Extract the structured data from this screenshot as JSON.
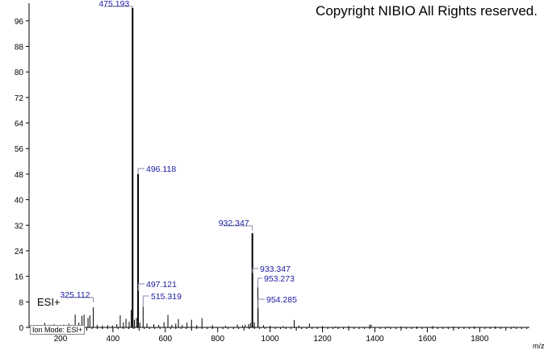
{
  "copyright": "Copyright NIBIO All Rights reserved.",
  "mode_label": "ESI+",
  "ion_mode_text": "Ion Mode: ESI+",
  "chart_data": {
    "type": "bar",
    "title": "",
    "xlabel": "m/z",
    "ylabel": "",
    "xlim": [
      80,
      1990
    ],
    "ylim": [
      0,
      100
    ],
    "x_ticks": [
      200,
      400,
      600,
      800,
      1000,
      1200,
      1400,
      1600,
      1800
    ],
    "y_ticks": [
      0,
      8,
      16,
      24,
      32,
      40,
      48,
      56,
      64,
      72,
      80,
      88,
      96
    ],
    "grid": false,
    "colors": {
      "peaks": "#000000",
      "labels": "#1a1aa0",
      "axis": "#000000"
    },
    "peaks": [
      {
        "mz": 140,
        "intensity": 1.4
      },
      {
        "mz": 158,
        "intensity": 0.8
      },
      {
        "mz": 175,
        "intensity": 1.0
      },
      {
        "mz": 190,
        "intensity": 0.6
      },
      {
        "mz": 212,
        "intensity": 0.9
      },
      {
        "mz": 232,
        "intensity": 1.2
      },
      {
        "mz": 256,
        "intensity": 4.0
      },
      {
        "mz": 270,
        "intensity": 1.5
      },
      {
        "mz": 282,
        "intensity": 3.6
      },
      {
        "mz": 290,
        "intensity": 4.0
      },
      {
        "mz": 305,
        "intensity": 3.0
      },
      {
        "mz": 312,
        "intensity": 3.8
      },
      {
        "mz": 325.112,
        "intensity": 6.3,
        "label": "325.112"
      },
      {
        "mz": 340,
        "intensity": 0.8
      },
      {
        "mz": 360,
        "intensity": 0.6
      },
      {
        "mz": 380,
        "intensity": 0.7
      },
      {
        "mz": 398,
        "intensity": 0.6
      },
      {
        "mz": 415,
        "intensity": 1.0
      },
      {
        "mz": 428,
        "intensity": 3.8
      },
      {
        "mz": 440,
        "intensity": 1.6
      },
      {
        "mz": 450,
        "intensity": 2.7
      },
      {
        "mz": 462,
        "intensity": 1.8
      },
      {
        "mz": 470,
        "intensity": 5.5
      },
      {
        "mz": 475.193,
        "intensity": 100,
        "label": "475.193"
      },
      {
        "mz": 482,
        "intensity": 2.4
      },
      {
        "mz": 490,
        "intensity": 3.0
      },
      {
        "mz": 496.118,
        "intensity": 48,
        "label": "496.118"
      },
      {
        "mz": 497.121,
        "intensity": 11.5,
        "label": "497.121"
      },
      {
        "mz": 503,
        "intensity": 1.5
      },
      {
        "mz": 515.319,
        "intensity": 6.5,
        "label": "515.319"
      },
      {
        "mz": 530,
        "intensity": 1.2
      },
      {
        "mz": 556,
        "intensity": 1.0
      },
      {
        "mz": 575,
        "intensity": 0.8
      },
      {
        "mz": 595,
        "intensity": 1.6
      },
      {
        "mz": 610,
        "intensity": 3.9
      },
      {
        "mz": 625,
        "intensity": 0.8
      },
      {
        "mz": 640,
        "intensity": 1.2
      },
      {
        "mz": 650,
        "intensity": 2.6
      },
      {
        "mz": 665,
        "intensity": 0.8
      },
      {
        "mz": 683,
        "intensity": 1.5
      },
      {
        "mz": 700,
        "intensity": 2.4
      },
      {
        "mz": 720,
        "intensity": 0.7
      },
      {
        "mz": 740,
        "intensity": 2.9
      },
      {
        "mz": 780,
        "intensity": 0.7
      },
      {
        "mz": 830,
        "intensity": 0.5
      },
      {
        "mz": 875,
        "intensity": 0.9
      },
      {
        "mz": 895,
        "intensity": 0.6
      },
      {
        "mz": 905,
        "intensity": 0.8
      },
      {
        "mz": 918,
        "intensity": 1.0
      },
      {
        "mz": 925,
        "intensity": 1.4
      },
      {
        "mz": 932.347,
        "intensity": 29.5,
        "label": "932.347"
      },
      {
        "mz": 933.347,
        "intensity": 17,
        "label": "933.347"
      },
      {
        "mz": 940,
        "intensity": 1.6
      },
      {
        "mz": 953.273,
        "intensity": 12.5,
        "label": "953.273"
      },
      {
        "mz": 954.285,
        "intensity": 6.0,
        "label": "954.285"
      },
      {
        "mz": 975,
        "intensity": 0.7
      },
      {
        "mz": 1000,
        "intensity": 0.5
      },
      {
        "mz": 1050,
        "intensity": 0.4
      },
      {
        "mz": 1092,
        "intensity": 2.3
      },
      {
        "mz": 1110,
        "intensity": 0.6
      },
      {
        "mz": 1150,
        "intensity": 1.2
      },
      {
        "mz": 1200,
        "intensity": 0.4
      },
      {
        "mz": 1250,
        "intensity": 0.3
      },
      {
        "mz": 1300,
        "intensity": 0.4
      },
      {
        "mz": 1380,
        "intensity": 0.9
      },
      {
        "mz": 1386,
        "intensity": 0.8
      },
      {
        "mz": 1450,
        "intensity": 0.3
      },
      {
        "mz": 1500,
        "intensity": 0.3
      },
      {
        "mz": 1560,
        "intensity": 0.3
      },
      {
        "mz": 1620,
        "intensity": 0.4
      },
      {
        "mz": 1700,
        "intensity": 0.3
      },
      {
        "mz": 1780,
        "intensity": 0.3
      },
      {
        "mz": 1860,
        "intensity": 0.3
      },
      {
        "mz": 1930,
        "intensity": 0.3
      }
    ]
  }
}
